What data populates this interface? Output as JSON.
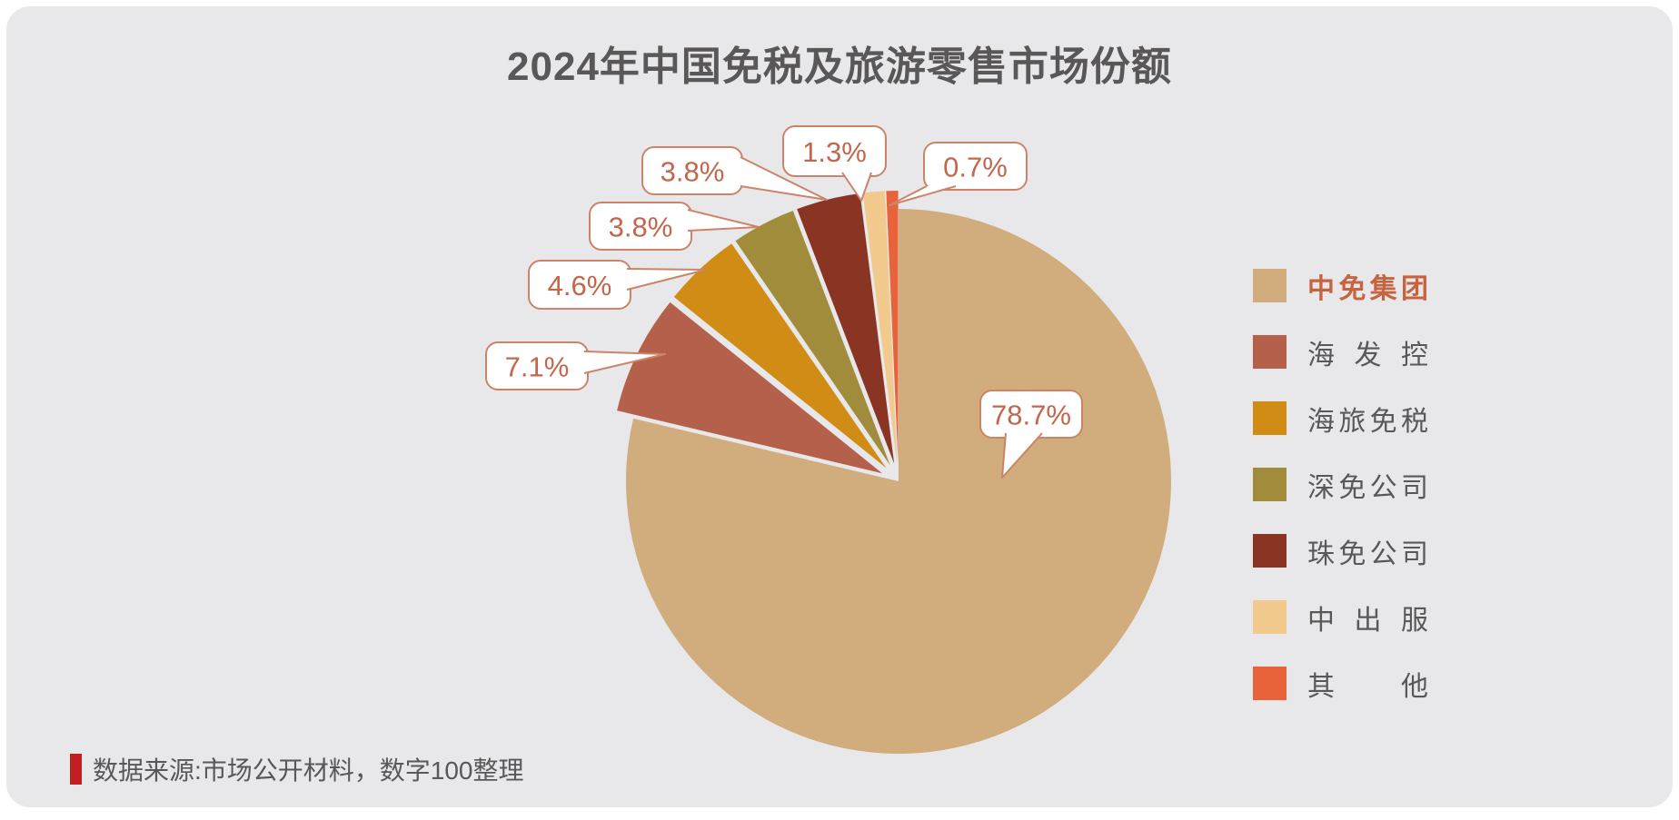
{
  "header": {
    "title": "2024年中国免税及旅游零售市场份额"
  },
  "footer": {
    "source_note": "数据来源:市场公开材料，数字100整理",
    "bar_color": "#c12023"
  },
  "style": {
    "panel_background": "#e8e8ea",
    "title_color": "#595757",
    "label_text_color": "#c2674b",
    "label_border_color": "#cb8469",
    "legend_text_color": "#595757",
    "legend_highlight_color": "#c76440"
  },
  "chart_data": {
    "type": "pie",
    "title": "2024年中国免税及旅游零售市场份额",
    "unit": "%",
    "legend_position": "right",
    "start_angle": "12-oclock, clockwise",
    "series": [
      {
        "name": "中免集团",
        "value": 78.7,
        "label": "78.7%",
        "color": "#d1ac7d",
        "highlighted": true
      },
      {
        "name": "海发控",
        "value": 7.1,
        "label": "7.1%",
        "color": "#b5604a"
      },
      {
        "name": "海旅免税",
        "value": 4.6,
        "label": "4.6%",
        "color": "#d18c15"
      },
      {
        "name": "深免公司",
        "value": 3.8,
        "label": "3.8%",
        "color": "#a18c3c"
      },
      {
        "name": "珠免公司",
        "value": 3.8,
        "label": "3.8%",
        "color": "#8a3423"
      },
      {
        "name": "中出服",
        "value": 1.3,
        "label": "1.3%",
        "color": "#f2ca8d"
      },
      {
        "name": "其他",
        "value": 0.7,
        "label": "0.7%",
        "color": "#e9633a"
      }
    ]
  }
}
